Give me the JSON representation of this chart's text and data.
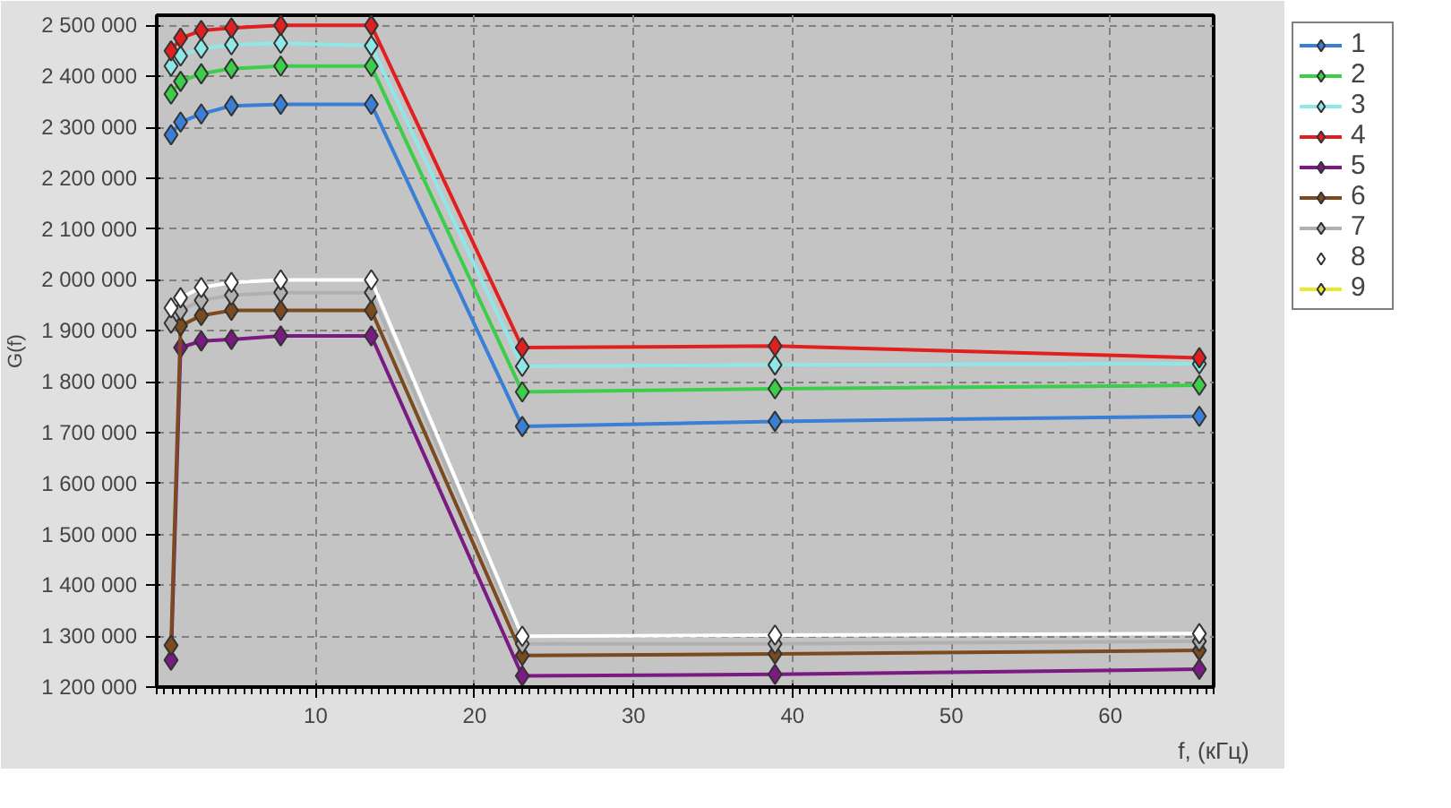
{
  "chart_data": {
    "type": "line",
    "xlabel": "f, (кГц)",
    "ylabel": "G(f)",
    "x": [
      0.9,
      1.5,
      2.8,
      4.7,
      7.8,
      13.5,
      23.0,
      38.9,
      65.6
    ],
    "series": [
      {
        "name": "1",
        "color": "#3a7fd5",
        "values": [
          2285000,
          2310000,
          2326000,
          2342000,
          2345000,
          2345000,
          1712000,
          1722000,
          1732000
        ]
      },
      {
        "name": "2",
        "color": "#3ccd4a",
        "values": [
          2365000,
          2390000,
          2405000,
          2415000,
          2420000,
          2420000,
          1780000,
          1786000,
          1793000
        ]
      },
      {
        "name": "3",
        "color": "#8fe8e8",
        "values": [
          2420000,
          2440000,
          2455000,
          2462000,
          2465000,
          2460000,
          1830000,
          1833000,
          1835000
        ]
      },
      {
        "name": "4",
        "color": "#e02020",
        "values": [
          2450000,
          2475000,
          2490000,
          2495000,
          2500000,
          2500000,
          1867000,
          1870000,
          1847000
        ]
      },
      {
        "name": "5",
        "color": "#7a1a82",
        "values": [
          1253000,
          1867000,
          1880000,
          1883000,
          1890000,
          1890000,
          1222000,
          1225000,
          1235000
        ]
      },
      {
        "name": "6",
        "color": "#7b4a1e",
        "values": [
          1282000,
          1910000,
          1930000,
          1940000,
          1940000,
          1940000,
          1262000,
          1265000,
          1272000
        ]
      },
      {
        "name": "7",
        "color": "#b0b0b0",
        "values": [
          1915000,
          1940000,
          1960000,
          1970000,
          1975000,
          1975000,
          1285000,
          1285000,
          1290000
        ]
      },
      {
        "name": "8",
        "color": "#ffffff",
        "values": [
          1945000,
          1965000,
          1985000,
          1995000,
          2000000,
          2000000,
          1300000,
          1302000,
          1305000
        ]
      },
      {
        "name": "9",
        "color": "#e8e830",
        "values": [
          null,
          null,
          null,
          null,
          null,
          null,
          null,
          null,
          null
        ]
      }
    ],
    "xlim": [
      0,
      66.5
    ],
    "xticks": [
      10,
      20,
      30,
      40,
      50,
      60
    ],
    "ylim": [
      1200000,
      2520000
    ],
    "yticks": [
      {
        "value": 1200000,
        "label": "1 200 000"
      },
      {
        "value": 1300000,
        "label": "1 300 000"
      },
      {
        "value": 1400000,
        "label": "1 400 000"
      },
      {
        "value": 1500000,
        "label": "1 500 000"
      },
      {
        "value": 1600000,
        "label": "1 600 000"
      },
      {
        "value": 1700000,
        "label": "1 700 000"
      },
      {
        "value": 1800000,
        "label": "1 800 000"
      },
      {
        "value": 1900000,
        "label": "1 900 000"
      },
      {
        "value": 2000000,
        "label": "2 000 000"
      },
      {
        "value": 2100000,
        "label": "2 100 000"
      },
      {
        "value": 2200000,
        "label": "2 200 000"
      },
      {
        "value": 2300000,
        "label": "2 300 000"
      },
      {
        "value": 2400000,
        "label": "2 400 000"
      },
      {
        "value": 2500000,
        "label": "2 500 000"
      }
    ],
    "grid": true,
    "legend": "right",
    "marker": "diamond",
    "line_style": "solid"
  }
}
